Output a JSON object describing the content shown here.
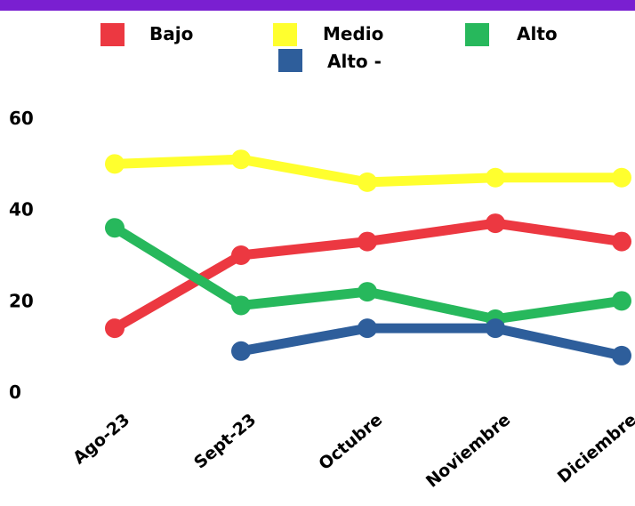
{
  "colors": {
    "top_bar": "#7a1fd1",
    "background": "#ffffff",
    "bajo": "#ec3841",
    "medio": "#ffff2e",
    "alto": "#27b85c",
    "alto_minus": "#2e5e9b"
  },
  "chart_data": {
    "type": "line",
    "categories": [
      "Ago-23",
      "Sept-23",
      "Octubre",
      "Noviembre",
      "Diciembre"
    ],
    "series": [
      {
        "name": "Bajo",
        "color": "#ec3841",
        "values": [
          14,
          30,
          33,
          37,
          33
        ]
      },
      {
        "name": "Medio",
        "color": "#ffff2e",
        "values": [
          50,
          51,
          46,
          47,
          47
        ]
      },
      {
        "name": "Alto",
        "color": "#27b85c",
        "values": [
          36,
          19,
          22,
          16,
          20
        ]
      },
      {
        "name": "Alto -",
        "color": "#2e5e9b",
        "values": [
          null,
          9,
          14,
          14,
          8
        ]
      }
    ],
    "yticks": [
      "0",
      "20",
      "40",
      "60"
    ],
    "ylim": [
      0,
      60
    ],
    "grid": false,
    "legend": "top-center",
    "title": "",
    "xlabel": "",
    "ylabel": ""
  }
}
